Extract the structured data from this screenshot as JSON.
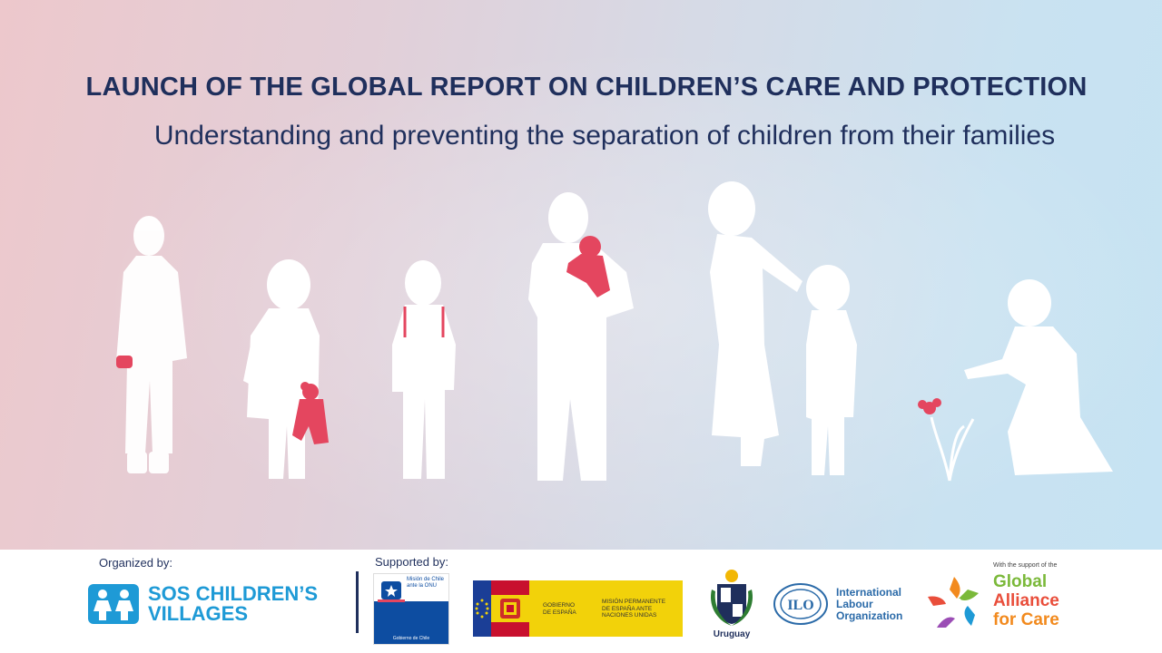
{
  "header": {
    "title": "LAUNCH OF THE GLOBAL REPORT ON CHILDREN’S CARE AND PROTECTION",
    "subtitle": "Understanding and preventing the separation of children from their families"
  },
  "footer": {
    "organized_label": "Organized by:",
    "supported_label": "Supported  by:",
    "sos": {
      "line1": "SOS CHILDREN’S",
      "line2": "VILLAGES",
      "color": "#1e9ad6"
    },
    "chile": {
      "text": "Misión de Chile ante la ONU",
      "footer": "Gobierno de Chile"
    },
    "spain": {
      "gov_line1": "GOBIERNO",
      "gov_line2": "DE ESPAÑA",
      "mission_line1": "MISIÓN PERMANENTE",
      "mission_line2": "DE ESPAÑA ANTE",
      "mission_line3": "NACIONES UNIDAS"
    },
    "uruguay": {
      "label": "Uruguay"
    },
    "ilo": {
      "line1": "International",
      "line2": "Labour",
      "line3": "Organization"
    },
    "gac": {
      "support_text": "With the support of the",
      "line1": "Global",
      "line2": "Alliance",
      "line3": "for Care"
    }
  },
  "colors": {
    "accent_navy": "#1f2f5c",
    "accent_red": "#e4465f",
    "figure": "#ffffff"
  }
}
